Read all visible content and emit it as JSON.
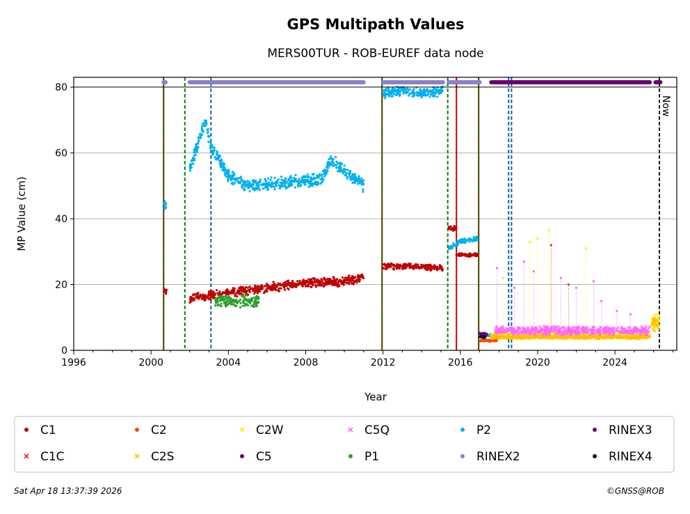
{
  "chart_data": {
    "type": "scatter",
    "title": "GPS Multipath Values",
    "subtitle": "MERS00TUR - ROB-EUREF data node",
    "xlabel": "Year",
    "ylabel": "MP Value (cm)",
    "xlim": [
      1996,
      2027.2
    ],
    "ylim": [
      0,
      83
    ],
    "x_ticks": [
      1996,
      2000,
      2004,
      2008,
      2012,
      2016,
      2020,
      2024
    ],
    "y_ticks": [
      0,
      20,
      40,
      60,
      80
    ],
    "grid": "horizontal",
    "now_label": "Now",
    "now_year": 2026.3,
    "legend": [
      {
        "name": "C1",
        "color": "#c00000",
        "marker": "circle"
      },
      {
        "name": "C2",
        "color": "#ff4500",
        "marker": "circle"
      },
      {
        "name": "C2W",
        "color": "#ffee00",
        "marker": "x"
      },
      {
        "name": "C5Q",
        "color": "#ff66ff",
        "marker": "x"
      },
      {
        "name": "P2",
        "color": "#00b0f0",
        "marker": "circle"
      },
      {
        "name": "RINEX3",
        "color": "#6a0070",
        "marker": "circle"
      },
      {
        "name": "C1C",
        "color": "#ff2020",
        "marker": "x"
      },
      {
        "name": "C2S",
        "color": "#ffc000",
        "marker": "x"
      },
      {
        "name": "C5",
        "color": "#6a0070",
        "marker": "circle"
      },
      {
        "name": "P1",
        "color": "#2ca02c",
        "marker": "circle"
      },
      {
        "name": "RINEX2",
        "color": "#8a80c8",
        "marker": "circle"
      },
      {
        "name": "RINEX4",
        "color": "#1a0020",
        "marker": "circle"
      }
    ],
    "events": [
      {
        "year": 2000.65,
        "color": "#c00000",
        "style": "solid"
      },
      {
        "year": 2000.65,
        "color": "#008000",
        "style": "dashed"
      },
      {
        "year": 2001.75,
        "color": "#008000",
        "style": "dashed"
      },
      {
        "year": 2003.1,
        "color": "#1060b0",
        "style": "dashed"
      },
      {
        "year": 2011.95,
        "color": "#c00000",
        "style": "solid"
      },
      {
        "year": 2011.95,
        "color": "#008000",
        "style": "dashed"
      },
      {
        "year": 2015.35,
        "color": "#008000",
        "style": "dashed"
      },
      {
        "year": 2015.8,
        "color": "#c00000",
        "style": "solid"
      },
      {
        "year": 2016.95,
        "color": "#c00000",
        "style": "solid"
      },
      {
        "year": 2016.95,
        "color": "#008000",
        "style": "dashed"
      },
      {
        "year": 2018.5,
        "color": "#1060b0",
        "style": "dashed"
      },
      {
        "year": 2018.65,
        "color": "#1060b0",
        "style": "dashed"
      }
    ],
    "availability": [
      {
        "name": "RINEX2",
        "color": "#8a80c8",
        "y": 81.5,
        "segments": [
          [
            2000.65,
            2000.75
          ],
          [
            2002.0,
            2011.0
          ],
          [
            2012.0,
            2015.1
          ],
          [
            2015.4,
            2017.0
          ]
        ]
      },
      {
        "name": "RINEX3",
        "color": "#6a0070",
        "y": 81.5,
        "segments": [
          [
            2017.6,
            2025.8
          ],
          [
            2026.1,
            2026.35
          ]
        ]
      }
    ],
    "series": [
      {
        "name": "C1",
        "color": "#c00000",
        "marker": "circle",
        "segments": [
          {
            "x": [
              2000.65,
              2000.8
            ],
            "y": [
              18,
              18
            ],
            "spread": 1.2
          },
          {
            "x": [
              2002.0,
              2004.0,
              2006.0,
              2008.0,
              2010.0,
              2011.0
            ],
            "y": [
              16,
              17.5,
              19,
              20.5,
              21,
              22
            ],
            "spread": 1.6
          },
          {
            "x": [
              2012.0,
              2013.5,
              2015.1
            ],
            "y": [
              25.5,
              25.5,
              25
            ],
            "spread": 1.0
          },
          {
            "x": [
              2015.4,
              2015.8
            ],
            "y": [
              37,
              37
            ],
            "spread": 0.8
          },
          {
            "x": [
              2015.8,
              2016.9
            ],
            "y": [
              29,
              29
            ],
            "spread": 0.6
          }
        ]
      },
      {
        "name": "P2",
        "color": "#00b0f0",
        "marker": "circle",
        "segments": [
          {
            "x": [
              2000.65,
              2000.8
            ],
            "y": [
              44,
              44
            ],
            "spread": 2.0
          },
          {
            "x": [
              2002.0,
              2002.8,
              2003.1,
              2004.0,
              2005.0,
              2007.0,
              2008.8,
              2009.3,
              2011.0
            ],
            "y": [
              55,
              70,
              62,
              53,
              50,
              51,
              52,
              58,
              50
            ],
            "spread": 2.2
          },
          {
            "x": [
              2012.0,
              2013.0,
              2014.0,
              2015.1
            ],
            "y": [
              78,
              79,
              78,
              79
            ],
            "spread": 1.8
          },
          {
            "x": [
              2015.4,
              2016.0,
              2016.9
            ],
            "y": [
              31,
              33,
              34
            ],
            "spread": 0.8
          },
          {
            "x": [
              2017.0,
              2017.6
            ],
            "y": [
              4.5,
              4.5
            ],
            "spread": 0.6
          }
        ]
      },
      {
        "name": "P1",
        "color": "#2ca02c",
        "marker": "circle",
        "segments": [
          {
            "x": [
              2003.3,
              2005.6
            ],
            "y": [
              15,
              15
            ],
            "spread": 2.0
          }
        ]
      },
      {
        "name": "C2",
        "color": "#ff4500",
        "marker": "circle",
        "segments": [
          {
            "x": [
              2017.0,
              2017.9
            ],
            "y": [
              3,
              3
            ],
            "spread": 0.4
          }
        ]
      },
      {
        "name": "C2W",
        "color": "#ffee00",
        "marker": "x",
        "segments": [
          {
            "x": [
              2017.6,
              2025.8
            ],
            "y": [
              4.5,
              4.5
            ],
            "spread": 0.8
          },
          {
            "x": [
              2025.9,
              2026.3
            ],
            "y": [
              9,
              9
            ],
            "spread": 2.5
          }
        ]
      },
      {
        "name": "C2S",
        "color": "#ffc000",
        "marker": "x",
        "segments": [
          {
            "x": [
              2017.6,
              2025.8
            ],
            "y": [
              4,
              4
            ],
            "spread": 0.6
          },
          {
            "x": [
              2025.9,
              2026.3
            ],
            "y": [
              8,
              8
            ],
            "spread": 2.5
          }
        ]
      },
      {
        "name": "C5Q",
        "color": "#ff66ff",
        "marker": "x",
        "segments": [
          {
            "x": [
              2017.8,
              2025.8
            ],
            "y": [
              6,
              6
            ],
            "spread": 1.5
          }
        ]
      },
      {
        "name": "C5",
        "color": "#6a0070",
        "marker": "circle",
        "segments": [
          {
            "x": [
              2017.0,
              2017.4
            ],
            "y": [
              5,
              5
            ],
            "spread": 0.6
          }
        ]
      },
      {
        "name": "RINEX4",
        "color": "#1a0020",
        "marker": "circle",
        "segments": [
          {
            "x": [
              2017.0,
              2017.3
            ],
            "y": [
              4,
              4
            ],
            "spread": 0.5
          }
        ]
      }
    ],
    "spikes": [
      {
        "x": 2020.6,
        "y": 36.5,
        "color": "#ffee00"
      },
      {
        "x": 2020.0,
        "y": 34,
        "color": "#ffee00"
      },
      {
        "x": 2019.6,
        "y": 33,
        "color": "#ffee00"
      },
      {
        "x": 2019.3,
        "y": 27,
        "color": "#ff66ff"
      },
      {
        "x": 2019.8,
        "y": 24,
        "color": "#ff66ff"
      },
      {
        "x": 2020.7,
        "y": 32,
        "color": "#ff2020"
      },
      {
        "x": 2021.2,
        "y": 22,
        "color": "#ff66ff"
      },
      {
        "x": 2021.6,
        "y": 20,
        "color": "#ff2020"
      },
      {
        "x": 2022.0,
        "y": 19,
        "color": "#ff66ff"
      },
      {
        "x": 2022.5,
        "y": 31,
        "color": "#ffee00"
      },
      {
        "x": 2022.9,
        "y": 21,
        "color": "#ff66ff"
      },
      {
        "x": 2023.3,
        "y": 15,
        "color": "#ff66ff"
      },
      {
        "x": 2024.1,
        "y": 12,
        "color": "#ff66ff"
      },
      {
        "x": 2024.8,
        "y": 11,
        "color": "#ff66ff"
      },
      {
        "x": 2018.2,
        "y": 22,
        "color": "#ffee00"
      },
      {
        "x": 2018.8,
        "y": 19,
        "color": "#ff66ff"
      },
      {
        "x": 2017.9,
        "y": 25,
        "color": "#ff66ff"
      }
    ]
  },
  "footer": {
    "timestamp": "Sat Apr 18 13:37:39 2026",
    "credit": "©GNSS@ROB"
  }
}
